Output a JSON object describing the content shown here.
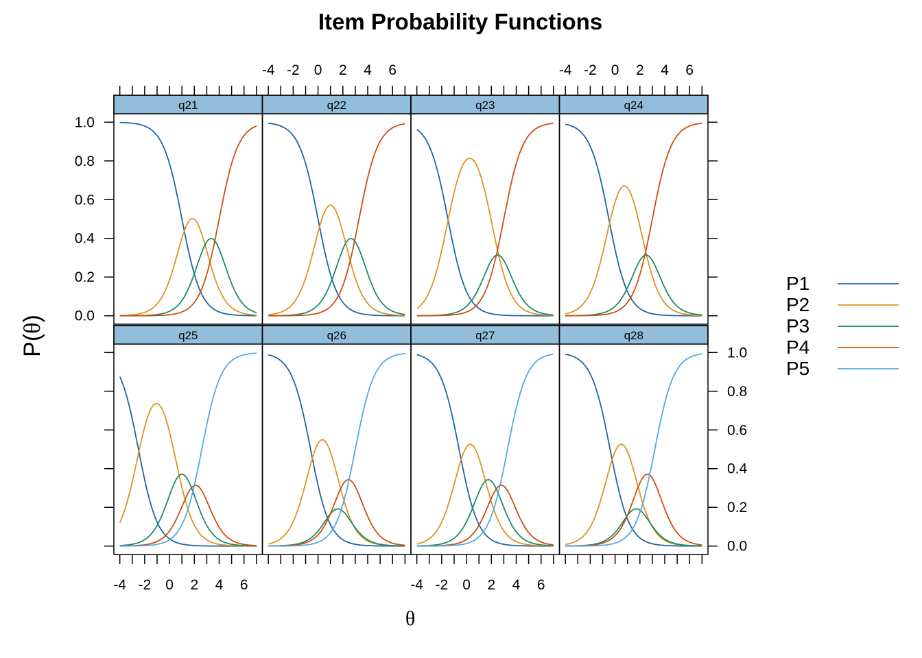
{
  "chart_data": {
    "type": "line",
    "title": "Item Probability Functions",
    "xlabel": "θ",
    "ylabel": "P(θ)",
    "xlim": [
      -4,
      7
    ],
    "ylim": [
      0,
      1
    ],
    "x_ticks": [
      -4,
      -2,
      0,
      2,
      4,
      6
    ],
    "y_ticks": [
      0.0,
      0.2,
      0.4,
      0.6,
      0.8,
      1.0
    ],
    "x_tick_labels": [
      "-4",
      "-2",
      "0",
      "2",
      "4",
      "6"
    ],
    "y_tick_labels": [
      "0.0",
      "0.2",
      "0.4",
      "0.6",
      "0.8",
      "1.0"
    ],
    "grid": false,
    "legend_position": "right",
    "series_names": [
      "P1",
      "P2",
      "P3",
      "P4",
      "P5"
    ],
    "series_colors": [
      "#1f63a5",
      "#e0931d",
      "#1a8a68",
      "#cc4e0e",
      "#55a8e0"
    ],
    "strip_color": "#92bedc",
    "panels": [
      {
        "name": "q21",
        "a": 1.3,
        "b": [
          1.0,
          2.7,
          4.0
        ]
      },
      {
        "name": "q22",
        "a": 1.3,
        "b": [
          0.0,
          2.0,
          3.3
        ]
      },
      {
        "name": "q23",
        "a": 1.3,
        "b": [
          -1.5,
          2.0,
          3.0
        ]
      },
      {
        "name": "q24",
        "a": 1.3,
        "b": [
          -0.5,
          2.0,
          3.0
        ]
      },
      {
        "name": "q25",
        "a": 1.3,
        "b": [
          -2.5,
          0.4,
          1.6,
          2.6
        ]
      },
      {
        "name": "q26",
        "a": 1.3,
        "b": [
          -0.6,
          1.3,
          1.9,
          3.0
        ]
      },
      {
        "name": "q27",
        "a": 1.3,
        "b": [
          -0.6,
          1.2,
          2.3,
          3.3
        ]
      },
      {
        "name": "q28",
        "a": 1.3,
        "b": [
          -0.4,
          1.4,
          2.0,
          3.2
        ]
      }
    ]
  }
}
